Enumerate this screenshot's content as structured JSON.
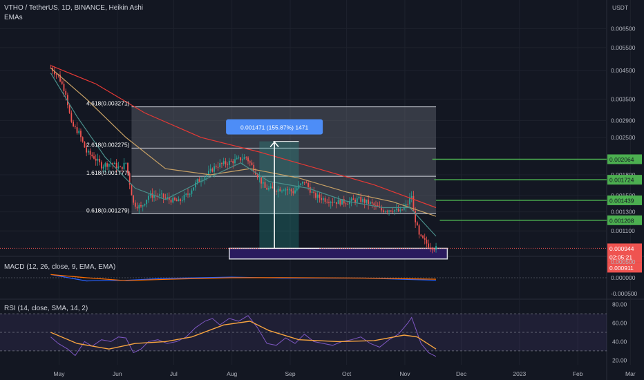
{
  "header": {
    "title": "VTHO / TetherUS, 1D, BINANCE, Heikin Ashi",
    "indicator": "EMAs",
    "macd_label": "MACD (12, 26, close, 9, EMA, EMA)",
    "rsi_label": "RSI (14, close, SMA, 14, 2)",
    "currency": "USDT"
  },
  "colors": {
    "background": "#131722",
    "up": "#26a69a",
    "down": "#ef5350",
    "fib_green": "#4caf50",
    "measure_blue": "#2962ff",
    "purple_box": "#2a1b5e",
    "rsi_line": "#7e57c2",
    "signal_line": "#f7a440"
  },
  "chart_data": [
    {
      "type": "candlestick",
      "title": "VTHO / TetherUS, 1D, BINANCE, Heikin Ashi",
      "price_axis": [
        "0.006500",
        "0.005500",
        "0.004500",
        "0.003500",
        "0.002900",
        "0.002500",
        "0.001800",
        "0.001500",
        "0.001300",
        "0.001100"
      ],
      "time_axis": [
        "May",
        "Jun",
        "Jul",
        "Aug",
        "Sep",
        "Oct",
        "Nov",
        "Dec",
        "2023",
        "Feb",
        "Mar"
      ],
      "log_scale": true,
      "ylim": [
        0.00088,
        0.0074
      ],
      "close_path": [
        [
          "2022-05-01",
          0.0046
        ],
        [
          "2022-05-05",
          0.0043
        ],
        [
          "2022-05-09",
          0.0037
        ],
        [
          "2022-05-12",
          0.0028
        ],
        [
          "2022-05-16",
          0.0026
        ],
        [
          "2022-05-20",
          0.0022
        ],
        [
          "2022-05-24",
          0.0021
        ],
        [
          "2022-05-28",
          0.00195
        ],
        [
          "2022-06-02",
          0.002
        ],
        [
          "2022-06-07",
          0.0019
        ],
        [
          "2022-06-10",
          0.002
        ],
        [
          "2022-06-14",
          0.0014
        ],
        [
          "2022-06-18",
          0.00135
        ],
        [
          "2022-06-22",
          0.0015
        ],
        [
          "2022-06-28",
          0.0015
        ],
        [
          "2022-07-03",
          0.00145
        ],
        [
          "2022-07-08",
          0.00142
        ],
        [
          "2022-07-13",
          0.00152
        ],
        [
          "2022-07-18",
          0.0017
        ],
        [
          "2022-07-23",
          0.0018
        ],
        [
          "2022-07-28",
          0.00195
        ],
        [
          "2022-08-03",
          0.002
        ],
        [
          "2022-08-08",
          0.00205
        ],
        [
          "2022-08-13",
          0.0021
        ],
        [
          "2022-08-18",
          0.00185
        ],
        [
          "2022-08-23",
          0.0016
        ],
        [
          "2022-08-28",
          0.00158
        ],
        [
          "2022-09-02",
          0.0016
        ],
        [
          "2022-09-07",
          0.00155
        ],
        [
          "2022-09-13",
          0.0017
        ],
        [
          "2022-09-18",
          0.0015
        ],
        [
          "2022-09-24",
          0.00145
        ],
        [
          "2022-09-30",
          0.00142
        ],
        [
          "2022-10-06",
          0.00142
        ],
        [
          "2022-10-12",
          0.00145
        ],
        [
          "2022-10-18",
          0.0014
        ],
        [
          "2022-10-24",
          0.00132
        ],
        [
          "2022-10-30",
          0.00133
        ],
        [
          "2022-11-03",
          0.0013
        ],
        [
          "2022-11-07",
          0.0014
        ],
        [
          "2022-11-09",
          0.0015
        ],
        [
          "2022-11-10",
          0.0013
        ],
        [
          "2022-11-13",
          0.00105
        ],
        [
          "2022-11-18",
          0.00097
        ],
        [
          "2022-11-22",
          0.000944
        ]
      ],
      "ema_fast": [
        [
          "2022-05-01",
          0.0044
        ],
        [
          "2022-05-15",
          0.003
        ],
        [
          "2022-05-30",
          0.0021
        ],
        [
          "2022-06-15",
          0.0016
        ],
        [
          "2022-07-01",
          0.00145
        ],
        [
          "2022-07-20",
          0.0017
        ],
        [
          "2022-08-10",
          0.002
        ],
        [
          "2022-08-25",
          0.0017
        ],
        [
          "2022-09-15",
          0.0016
        ],
        [
          "2022-10-05",
          0.00143
        ],
        [
          "2022-10-25",
          0.00135
        ],
        [
          "2022-11-08",
          0.00135
        ],
        [
          "2022-11-22",
          0.00105
        ]
      ],
      "ema_mid": [
        [
          "2022-05-01",
          0.0046
        ],
        [
          "2022-05-20",
          0.0035
        ],
        [
          "2022-06-10",
          0.0025
        ],
        [
          "2022-07-01",
          0.0019
        ],
        [
          "2022-07-25",
          0.0018
        ],
        [
          "2022-08-15",
          0.0019
        ],
        [
          "2022-09-10",
          0.00175
        ],
        [
          "2022-10-05",
          0.00155
        ],
        [
          "2022-10-30",
          0.00142
        ],
        [
          "2022-11-22",
          0.00125
        ]
      ],
      "ema_slow": [
        [
          "2022-05-01",
          0.0047
        ],
        [
          "2022-05-25",
          0.004
        ],
        [
          "2022-06-20",
          0.0031
        ],
        [
          "2022-07-20",
          0.0025
        ],
        [
          "2022-08-20",
          0.0022
        ],
        [
          "2022-09-20",
          0.0019
        ],
        [
          "2022-10-20",
          0.00165
        ],
        [
          "2022-11-22",
          0.00135
        ]
      ],
      "fib_levels": [
        {
          "label": "4.618(0.003271)",
          "value": 0.003271
        },
        {
          "label": "2.618(0.002275)",
          "value": 0.002275
        },
        {
          "label": "1.618(0.001777)",
          "value": 0.001777
        },
        {
          "label": "0.618(0.001279)",
          "value": 0.001279
        }
      ],
      "fib_range": {
        "start": "2022-06-13",
        "end": "2022-11-22"
      },
      "horizontal_levels": [
        {
          "label": "0.002064",
          "value": 0.002064,
          "start": "2022-11-20"
        },
        {
          "label": "0.001724",
          "value": 0.001724,
          "start": "2022-11-21"
        },
        {
          "label": "0.001439",
          "value": 0.001439,
          "start": "2022-11-22"
        },
        {
          "label": "0.001208",
          "value": 0.001208,
          "start": "2022-11-24"
        }
      ],
      "measure": {
        "label": "0.001471 (155.87%) 1471",
        "from": 0.000944,
        "to": 0.002415,
        "start": "2022-08-20",
        "end": "2022-09-10",
        "arrow_date": "2022-08-28"
      },
      "support_zone": {
        "low": 0.00086,
        "high": 0.000944,
        "start": "2022-08-04",
        "end": "2022-11-28"
      },
      "price_tags": [
        {
          "label": "0.000944",
          "value": 0.000944
        },
        {
          "label": "02:05:21",
          "value": 0.000944
        },
        {
          "label": "0.000911",
          "value": 0.000911
        }
      ]
    },
    {
      "type": "line",
      "title": "MACD (12, 26, close, 9, EMA, EMA)",
      "ylim": [
        -0.00065,
        0.00065
      ],
      "y_ticks": [
        "0.000500",
        "0.000000",
        "-0.000500"
      ],
      "series": [
        {
          "values": [
            [
              "2022-05-01",
              0.0001
            ],
            [
              "2022-05-20",
              -0.0001
            ],
            [
              "2022-06-10",
              -8e-05
            ],
            [
              "2022-07-01",
              -2e-05
            ],
            [
              "2022-08-05",
              2e-05
            ],
            [
              "2022-09-01",
              -1e-05
            ],
            [
              "2022-10-15",
              -1e-05
            ],
            [
              "2022-11-22",
              -8e-05
            ]
          ]
        }
      ]
    },
    {
      "type": "line",
      "title": "RSI (14, close, SMA, 14, 2)",
      "ylim": [
        15,
        85
      ],
      "y_ticks": [
        "80.00",
        "60.00",
        "40.00",
        "20.00"
      ],
      "bands": [
        30,
        50,
        70
      ],
      "series": [
        {
          "name": "RSI",
          "values": [
            [
              "2022-05-01",
              45
            ],
            [
              "2022-05-05",
              38
            ],
            [
              "2022-05-10",
              32
            ],
            [
              "2022-05-14",
              25
            ],
            [
              "2022-05-19",
              40
            ],
            [
              "2022-05-23",
              35
            ],
            [
              "2022-05-28",
              42
            ],
            [
              "2022-06-02",
              40
            ],
            [
              "2022-06-06",
              45
            ],
            [
              "2022-06-10",
              44
            ],
            [
              "2022-06-14",
              28
            ],
            [
              "2022-06-18",
              32
            ],
            [
              "2022-06-22",
              40
            ],
            [
              "2022-06-27",
              42
            ],
            [
              "2022-07-02",
              38
            ],
            [
              "2022-07-07",
              40
            ],
            [
              "2022-07-12",
              45
            ],
            [
              "2022-07-17",
              55
            ],
            [
              "2022-07-22",
              62
            ],
            [
              "2022-07-26",
              65
            ],
            [
              "2022-07-30",
              58
            ],
            [
              "2022-08-04",
              65
            ],
            [
              "2022-08-09",
              62
            ],
            [
              "2022-08-14",
              68
            ],
            [
              "2022-08-19",
              55
            ],
            [
              "2022-08-24",
              38
            ],
            [
              "2022-08-29",
              36
            ],
            [
              "2022-09-03",
              44
            ],
            [
              "2022-09-08",
              38
            ],
            [
              "2022-09-13",
              48
            ],
            [
              "2022-09-18",
              40
            ],
            [
              "2022-09-23",
              38
            ],
            [
              "2022-09-28",
              36
            ],
            [
              "2022-10-03",
              40
            ],
            [
              "2022-10-08",
              42
            ],
            [
              "2022-10-13",
              45
            ],
            [
              "2022-10-18",
              38
            ],
            [
              "2022-10-23",
              34
            ],
            [
              "2022-10-28",
              42
            ],
            [
              "2022-11-02",
              48
            ],
            [
              "2022-11-07",
              60
            ],
            [
              "2022-11-09",
              66
            ],
            [
              "2022-11-11",
              55
            ],
            [
              "2022-11-14",
              38
            ],
            [
              "2022-11-18",
              28
            ],
            [
              "2022-11-22",
              24
            ]
          ]
        },
        {
          "name": "RSI-based MA",
          "values": [
            [
              "2022-05-01",
              50
            ],
            [
              "2022-05-15",
              38
            ],
            [
              "2022-06-01",
              32
            ],
            [
              "2022-06-15",
              38
            ],
            [
              "2022-07-01",
              40
            ],
            [
              "2022-07-15",
              45
            ],
            [
              "2022-08-01",
              58
            ],
            [
              "2022-08-15",
              62
            ],
            [
              "2022-08-25",
              52
            ],
            [
              "2022-09-10",
              42
            ],
            [
              "2022-10-01",
              40
            ],
            [
              "2022-10-20",
              41
            ],
            [
              "2022-11-05",
              47
            ],
            [
              "2022-11-12",
              45
            ],
            [
              "2022-11-22",
              32
            ]
          ]
        }
      ]
    }
  ]
}
